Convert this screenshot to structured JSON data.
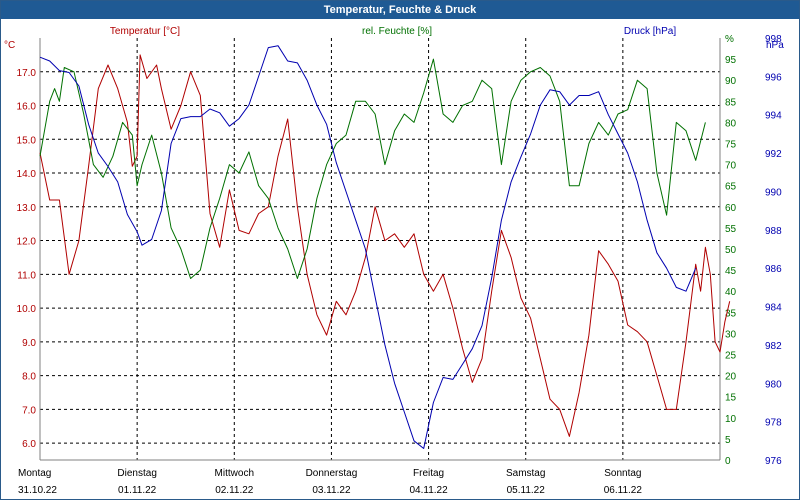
{
  "title": "Temperatur, Feuchte & Druck",
  "colors": {
    "temperature": "#b00000",
    "humidity": "#007000",
    "pressure": "#0000b0",
    "grid": "#000000",
    "title_bg": "#1f5a94"
  },
  "chart_data": {
    "type": "line",
    "title": "Temperatur, Feuchte & Druck",
    "x_axis": {
      "unit": "day",
      "range": [
        0,
        7
      ],
      "labels": [
        {
          "day": "Montag",
          "date": "31.10.22"
        },
        {
          "day": "Dienstag",
          "date": "01.11.22"
        },
        {
          "day": "Mittwoch",
          "date": "02.11.22"
        },
        {
          "day": "Donnerstag",
          "date": "03.11.22"
        },
        {
          "day": "Freitag",
          "date": "04.11.22"
        },
        {
          "day": "Samstag",
          "date": "05.11.22"
        },
        {
          "day": "Sonntag",
          "date": "06.11.22"
        }
      ]
    },
    "axes": {
      "temperature": {
        "label": "Temperatur [°C]",
        "unit_label": "°C",
        "min": 5.5,
        "max": 18.0,
        "ticks": [
          "6.0",
          "7.0",
          "8.0",
          "9.0",
          "10.0",
          "11.0",
          "12.0",
          "13.0",
          "14.0",
          "15.0",
          "16.0",
          "17.0"
        ]
      },
      "humidity": {
        "label": "rel. Feuchte [%]",
        "unit_label": "%",
        "min": 0,
        "max": 100,
        "ticks": [
          "0",
          "5",
          "10",
          "15",
          "20",
          "25",
          "30",
          "35",
          "40",
          "45",
          "50",
          "55",
          "60",
          "65",
          "70",
          "75",
          "80",
          "85",
          "90",
          "95",
          "%"
        ]
      },
      "pressure": {
        "label": "Druck [hPa]",
        "unit_label": "hPa",
        "min": 976,
        "max": 998,
        "ticks": [
          "976",
          "978",
          "980",
          "982",
          "984",
          "986",
          "988",
          "990",
          "992",
          "994",
          "996",
          "998"
        ]
      }
    },
    "series": [
      {
        "name": "Temperatur [°C]",
        "axis": "temperature",
        "points": [
          [
            0.0,
            14.6
          ],
          [
            0.1,
            13.2
          ],
          [
            0.2,
            13.2
          ],
          [
            0.3,
            11.0
          ],
          [
            0.4,
            12.0
          ],
          [
            0.5,
            14.2
          ],
          [
            0.6,
            16.5
          ],
          [
            0.7,
            17.2
          ],
          [
            0.8,
            16.5
          ],
          [
            0.9,
            15.5
          ],
          [
            0.95,
            14.2
          ],
          [
            1.0,
            14.5
          ],
          [
            1.03,
            17.5
          ],
          [
            1.1,
            16.8
          ],
          [
            1.2,
            17.2
          ],
          [
            1.25,
            16.5
          ],
          [
            1.35,
            15.3
          ],
          [
            1.45,
            16.0
          ],
          [
            1.55,
            17.0
          ],
          [
            1.65,
            16.3
          ],
          [
            1.75,
            12.8
          ],
          [
            1.85,
            11.8
          ],
          [
            1.95,
            13.5
          ],
          [
            2.05,
            12.3
          ],
          [
            2.15,
            12.2
          ],
          [
            2.25,
            12.8
          ],
          [
            2.35,
            13.0
          ],
          [
            2.45,
            14.5
          ],
          [
            2.55,
            15.6
          ],
          [
            2.65,
            13.0
          ],
          [
            2.75,
            11.0
          ],
          [
            2.85,
            9.8
          ],
          [
            2.95,
            9.2
          ],
          [
            3.05,
            10.2
          ],
          [
            3.15,
            9.8
          ],
          [
            3.25,
            10.5
          ],
          [
            3.35,
            11.5
          ],
          [
            3.45,
            13.0
          ],
          [
            3.55,
            12.0
          ],
          [
            3.65,
            12.2
          ],
          [
            3.75,
            11.8
          ],
          [
            3.85,
            12.2
          ],
          [
            3.95,
            11.0
          ],
          [
            4.05,
            10.5
          ],
          [
            4.15,
            11.0
          ],
          [
            4.25,
            10.0
          ],
          [
            4.35,
            8.8
          ],
          [
            4.45,
            7.8
          ],
          [
            4.55,
            8.5
          ],
          [
            4.65,
            10.5
          ],
          [
            4.75,
            12.3
          ],
          [
            4.85,
            11.5
          ],
          [
            4.95,
            10.3
          ],
          [
            5.05,
            9.7
          ],
          [
            5.15,
            8.5
          ],
          [
            5.25,
            7.3
          ],
          [
            5.35,
            7.0
          ],
          [
            5.45,
            6.2
          ],
          [
            5.55,
            7.5
          ],
          [
            5.65,
            9.2
          ],
          [
            5.75,
            11.7
          ],
          [
            5.85,
            11.3
          ],
          [
            5.95,
            10.8
          ],
          [
            6.05,
            9.5
          ],
          [
            6.15,
            9.3
          ],
          [
            6.25,
            9.0
          ],
          [
            6.35,
            8.0
          ],
          [
            6.45,
            7.0
          ],
          [
            6.55,
            7.0
          ],
          [
            6.65,
            9.0
          ],
          [
            6.75,
            11.3
          ],
          [
            6.8,
            10.5
          ],
          [
            6.85,
            11.8
          ],
          [
            6.9,
            11.0
          ],
          [
            6.95,
            9.0
          ],
          [
            7.0,
            8.7
          ],
          [
            7.05,
            9.6
          ],
          [
            7.1,
            10.2
          ]
        ]
      },
      {
        "name": "rel. Feuchte [%]",
        "axis": "humidity",
        "points": [
          [
            0.0,
            72
          ],
          [
            0.1,
            85
          ],
          [
            0.15,
            88
          ],
          [
            0.2,
            85
          ],
          [
            0.25,
            93
          ],
          [
            0.35,
            92
          ],
          [
            0.45,
            82
          ],
          [
            0.55,
            70
          ],
          [
            0.65,
            67
          ],
          [
            0.75,
            72
          ],
          [
            0.85,
            80
          ],
          [
            0.95,
            77
          ],
          [
            1.0,
            65
          ],
          [
            1.05,
            70
          ],
          [
            1.15,
            77
          ],
          [
            1.25,
            68
          ],
          [
            1.35,
            55
          ],
          [
            1.45,
            50
          ],
          [
            1.55,
            43
          ],
          [
            1.65,
            45
          ],
          [
            1.75,
            55
          ],
          [
            1.85,
            62
          ],
          [
            1.95,
            70
          ],
          [
            2.05,
            68
          ],
          [
            2.15,
            73
          ],
          [
            2.25,
            65
          ],
          [
            2.35,
            62
          ],
          [
            2.45,
            55
          ],
          [
            2.55,
            50
          ],
          [
            2.65,
            43
          ],
          [
            2.75,
            50
          ],
          [
            2.85,
            62
          ],
          [
            2.95,
            70
          ],
          [
            3.05,
            75
          ],
          [
            3.15,
            77
          ],
          [
            3.25,
            85
          ],
          [
            3.35,
            85
          ],
          [
            3.45,
            82
          ],
          [
            3.55,
            70
          ],
          [
            3.65,
            78
          ],
          [
            3.75,
            82
          ],
          [
            3.85,
            80
          ],
          [
            3.95,
            87
          ],
          [
            4.05,
            95
          ],
          [
            4.15,
            82
          ],
          [
            4.25,
            80
          ],
          [
            4.35,
            84
          ],
          [
            4.45,
            85
          ],
          [
            4.55,
            90
          ],
          [
            4.65,
            88
          ],
          [
            4.75,
            70
          ],
          [
            4.85,
            85
          ],
          [
            4.95,
            90
          ],
          [
            5.05,
            92
          ],
          [
            5.15,
            93
          ],
          [
            5.25,
            91
          ],
          [
            5.35,
            85
          ],
          [
            5.45,
            65
          ],
          [
            5.55,
            65
          ],
          [
            5.65,
            75
          ],
          [
            5.75,
            80
          ],
          [
            5.85,
            77
          ],
          [
            5.95,
            82
          ],
          [
            6.05,
            83
          ],
          [
            6.15,
            90
          ],
          [
            6.25,
            88
          ],
          [
            6.35,
            68
          ],
          [
            6.45,
            58
          ],
          [
            6.55,
            80
          ],
          [
            6.65,
            78
          ],
          [
            6.75,
            71
          ],
          [
            6.85,
            80
          ]
        ]
      },
      {
        "name": "Druck [hPa]",
        "axis": "pressure",
        "points": [
          [
            0.0,
            997.0
          ],
          [
            0.1,
            996.8
          ],
          [
            0.2,
            996.3
          ],
          [
            0.3,
            996.2
          ],
          [
            0.4,
            995.5
          ],
          [
            0.5,
            993.5
          ],
          [
            0.6,
            992.0
          ],
          [
            0.7,
            991.3
          ],
          [
            0.8,
            990.5
          ],
          [
            0.9,
            988.8
          ],
          [
            1.0,
            987.9
          ],
          [
            1.05,
            987.2
          ],
          [
            1.15,
            987.5
          ],
          [
            1.25,
            989.0
          ],
          [
            1.35,
            992.5
          ],
          [
            1.45,
            993.8
          ],
          [
            1.55,
            993.9
          ],
          [
            1.65,
            993.9
          ],
          [
            1.75,
            994.3
          ],
          [
            1.85,
            994.1
          ],
          [
            1.95,
            993.4
          ],
          [
            2.05,
            993.8
          ],
          [
            2.15,
            994.5
          ],
          [
            2.25,
            996.0
          ],
          [
            2.35,
            997.5
          ],
          [
            2.45,
            997.6
          ],
          [
            2.55,
            996.8
          ],
          [
            2.65,
            996.7
          ],
          [
            2.75,
            995.8
          ],
          [
            2.85,
            994.5
          ],
          [
            2.95,
            993.5
          ],
          [
            3.05,
            991.5
          ],
          [
            3.15,
            990.0
          ],
          [
            3.25,
            988.5
          ],
          [
            3.35,
            987.0
          ],
          [
            3.45,
            984.5
          ],
          [
            3.55,
            982.0
          ],
          [
            3.65,
            980.0
          ],
          [
            3.75,
            978.5
          ],
          [
            3.85,
            977.0
          ],
          [
            3.95,
            976.6
          ],
          [
            4.05,
            979.0
          ],
          [
            4.15,
            980.3
          ],
          [
            4.25,
            980.2
          ],
          [
            4.35,
            981.0
          ],
          [
            4.45,
            981.8
          ],
          [
            4.55,
            983.0
          ],
          [
            4.65,
            985.5
          ],
          [
            4.75,
            988.5
          ],
          [
            4.85,
            990.5
          ],
          [
            4.95,
            991.8
          ],
          [
            5.05,
            993.0
          ],
          [
            5.15,
            994.5
          ],
          [
            5.25,
            995.3
          ],
          [
            5.35,
            995.2
          ],
          [
            5.45,
            994.5
          ],
          [
            5.55,
            995.0
          ],
          [
            5.65,
            995.0
          ],
          [
            5.75,
            995.2
          ],
          [
            5.85,
            994.0
          ],
          [
            5.95,
            993.0
          ],
          [
            6.05,
            992.0
          ],
          [
            6.15,
            990.5
          ],
          [
            6.25,
            988.5
          ],
          [
            6.35,
            986.8
          ],
          [
            6.45,
            986.0
          ],
          [
            6.55,
            985.0
          ],
          [
            6.65,
            984.8
          ],
          [
            6.75,
            986.0
          ]
        ]
      }
    ]
  }
}
